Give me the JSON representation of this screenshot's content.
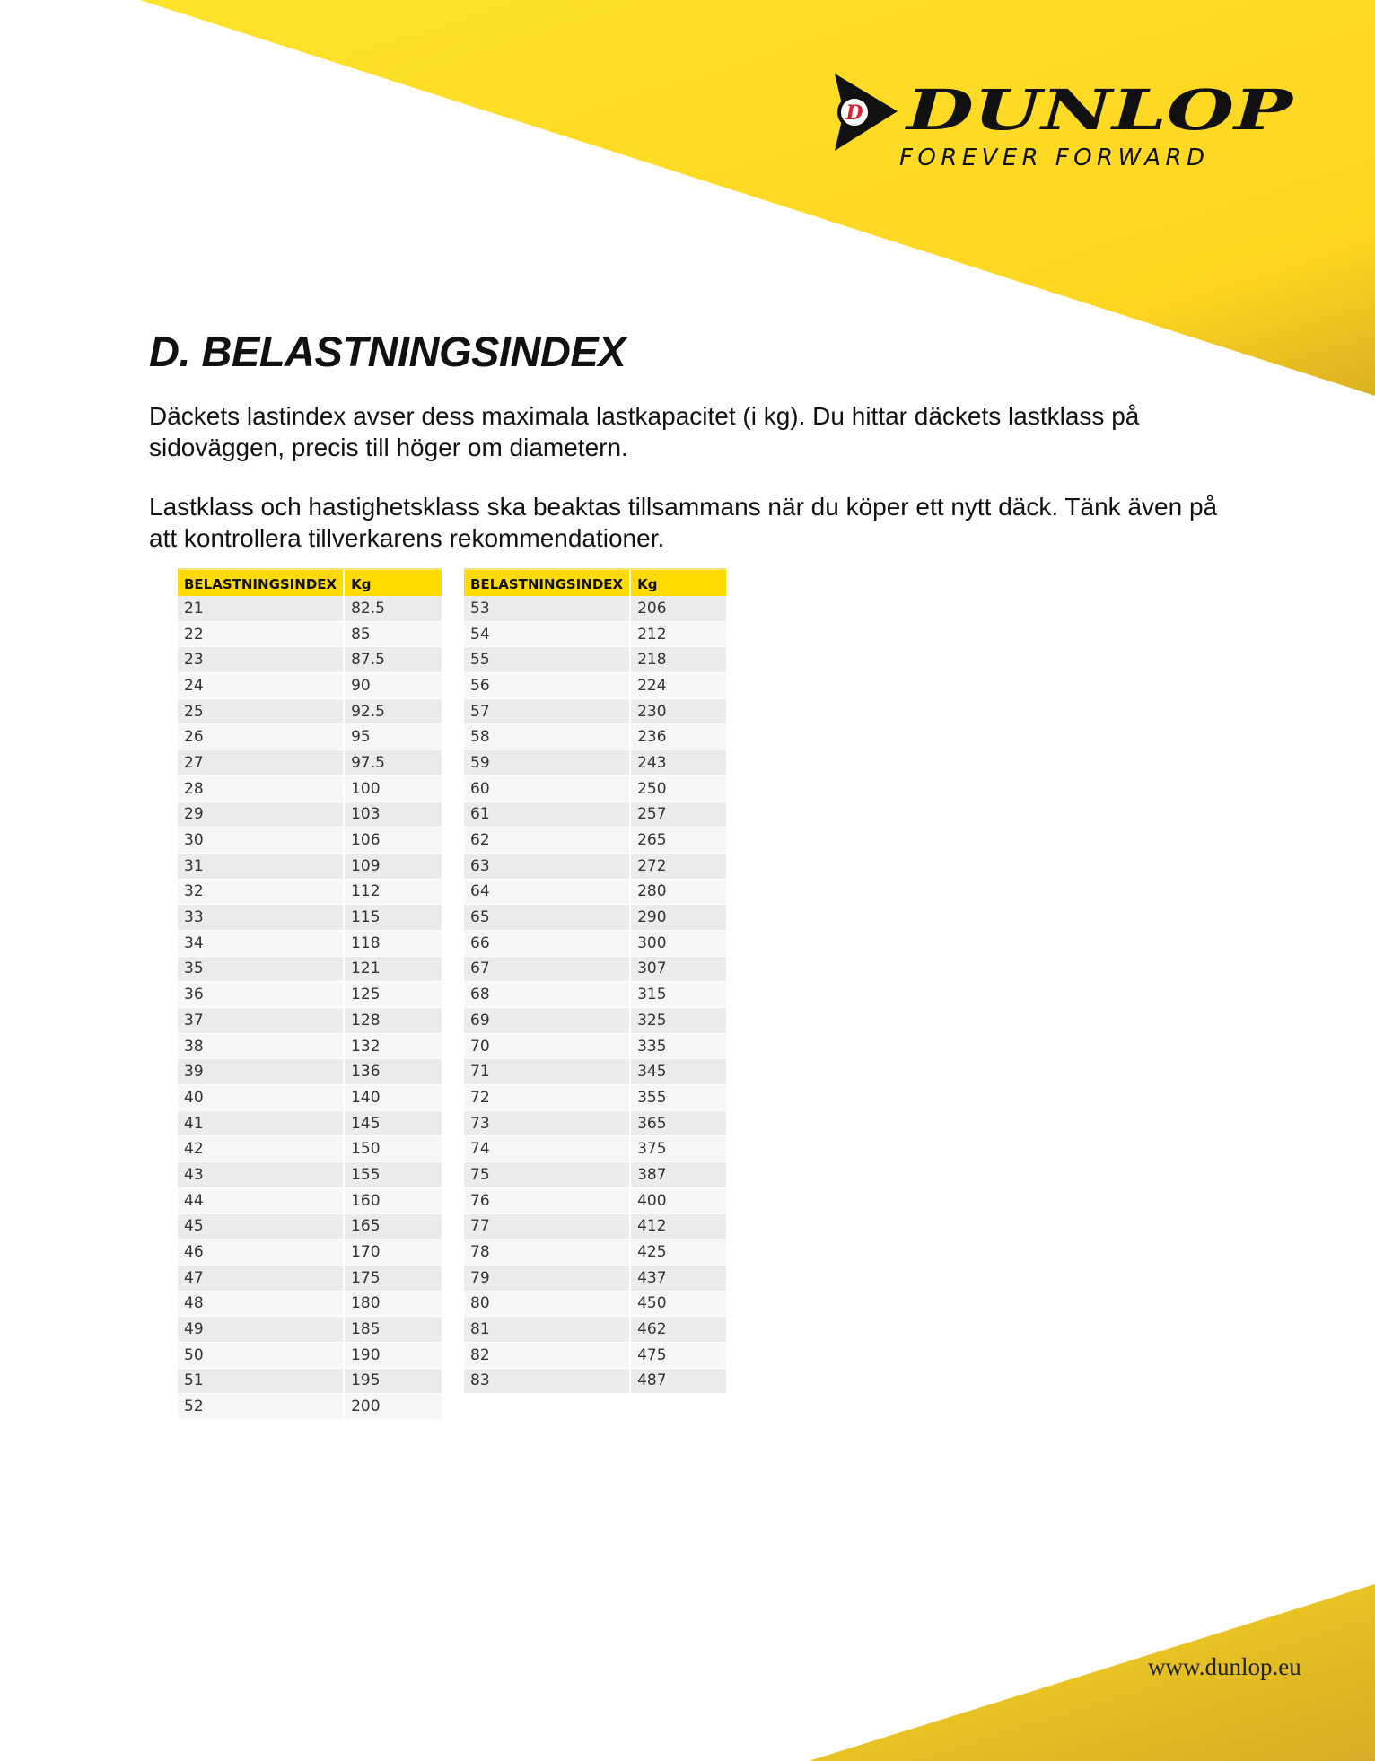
{
  "brand": {
    "name": "DUNLOP",
    "tagline": "FOREVER FORWARD",
    "colors": {
      "yellow": "#ffd91f",
      "red": "#e0202a",
      "black": "#111111"
    }
  },
  "title": "D. BELASTNINGSINDEX",
  "paragraphs": [
    "Däckets lastindex avser dess maximala lastkapacitet (i kg). Du hittar däckets lastklass på sidoväggen, precis till höger om diametern.",
    "Lastklass och hastighetsklass ska beaktas tillsammans när du köper ett nytt däck. Tänk även på att kontrollera tillverkarens rekommendationer."
  ],
  "tables": [
    {
      "headers": [
        "BELASTNINGSINDEX",
        "Kg"
      ],
      "rows": [
        [
          "21",
          "82.5"
        ],
        [
          "22",
          "85"
        ],
        [
          "23",
          "87.5"
        ],
        [
          "24",
          "90"
        ],
        [
          "25",
          "92.5"
        ],
        [
          "26",
          "95"
        ],
        [
          "27",
          "97.5"
        ],
        [
          "28",
          "100"
        ],
        [
          "29",
          "103"
        ],
        [
          "30",
          "106"
        ],
        [
          "31",
          "109"
        ],
        [
          "32",
          "112"
        ],
        [
          "33",
          "115"
        ],
        [
          "34",
          "118"
        ],
        [
          "35",
          "121"
        ],
        [
          "36",
          "125"
        ],
        [
          "37",
          "128"
        ],
        [
          "38",
          "132"
        ],
        [
          "39",
          "136"
        ],
        [
          "40",
          "140"
        ],
        [
          "41",
          "145"
        ],
        [
          "42",
          "150"
        ],
        [
          "43",
          "155"
        ],
        [
          "44",
          "160"
        ],
        [
          "45",
          "165"
        ],
        [
          "46",
          "170"
        ],
        [
          "47",
          "175"
        ],
        [
          "48",
          "180"
        ],
        [
          "49",
          "185"
        ],
        [
          "50",
          "190"
        ],
        [
          "51",
          "195"
        ],
        [
          "52",
          "200"
        ]
      ]
    },
    {
      "headers": [
        "BELASTNINGSINDEX",
        "Kg"
      ],
      "rows": [
        [
          "53",
          "206"
        ],
        [
          "54",
          "212"
        ],
        [
          "55",
          "218"
        ],
        [
          "56",
          "224"
        ],
        [
          "57",
          "230"
        ],
        [
          "58",
          "236"
        ],
        [
          "59",
          "243"
        ],
        [
          "60",
          "250"
        ],
        [
          "61",
          "257"
        ],
        [
          "62",
          "265"
        ],
        [
          "63",
          "272"
        ],
        [
          "64",
          "280"
        ],
        [
          "65",
          "290"
        ],
        [
          "66",
          "300"
        ],
        [
          "67",
          "307"
        ],
        [
          "68",
          "315"
        ],
        [
          "69",
          "325"
        ],
        [
          "70",
          "335"
        ],
        [
          "71",
          "345"
        ],
        [
          "72",
          "355"
        ],
        [
          "73",
          "365"
        ],
        [
          "74",
          "375"
        ],
        [
          "75",
          "387"
        ],
        [
          "76",
          "400"
        ],
        [
          "77",
          "412"
        ],
        [
          "78",
          "425"
        ],
        [
          "79",
          "437"
        ],
        [
          "80",
          "450"
        ],
        [
          "81",
          "462"
        ],
        [
          "82",
          "475"
        ],
        [
          "83",
          "487"
        ]
      ]
    }
  ],
  "footer": {
    "url": "www.dunlop.eu"
  }
}
